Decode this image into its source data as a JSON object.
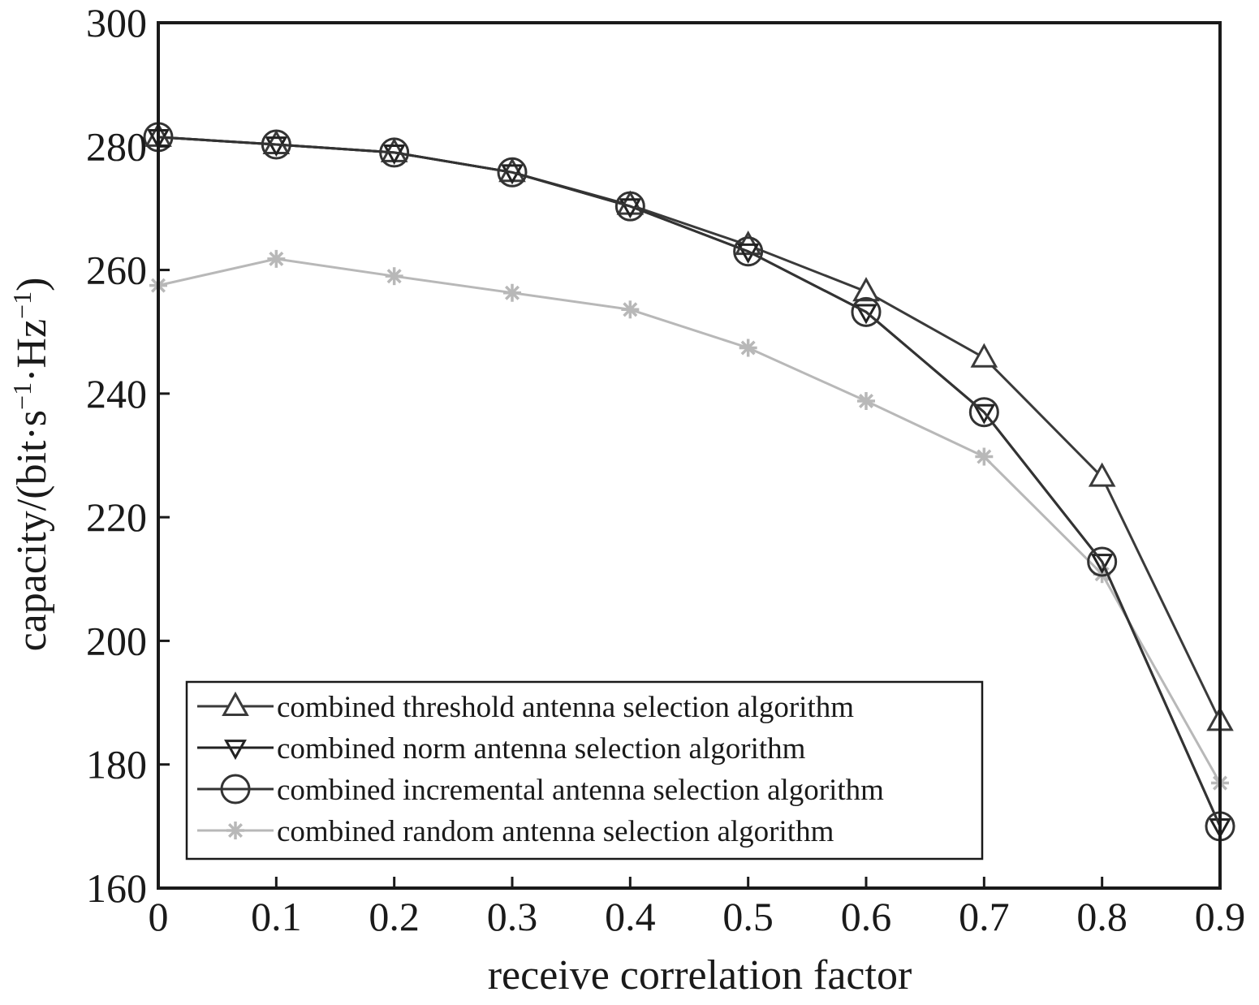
{
  "chart_data": {
    "type": "line",
    "xlabel": "receive correlation factor",
    "ylabel": {
      "prefix": "capacity/(bit·s",
      "sup1": "−1",
      "mid": "·Hz",
      "sup2": "−1",
      "suffix": ")"
    },
    "xlim": [
      0,
      0.9
    ],
    "ylim": [
      160,
      300
    ],
    "x_ticks": [
      "0",
      "0.1",
      "0.2",
      "0.3",
      "0.4",
      "0.5",
      "0.6",
      "0.7",
      "0.8",
      "0.9"
    ],
    "y_ticks": [
      "160",
      "180",
      "200",
      "220",
      "240",
      "260",
      "280",
      "300"
    ],
    "x": [
      0,
      0.1,
      0.2,
      0.3,
      0.4,
      0.5,
      0.6,
      0.7,
      0.8,
      0.9
    ],
    "grid": false,
    "legend_position": "bottom-left",
    "series": [
      {
        "name": "combined threshold antenna selection algorithm",
        "marker": "triangle-up",
        "color": "#3a3a3a",
        "values": [
          281.5,
          280.3,
          279.0,
          275.8,
          270.5,
          264.0,
          256.5,
          245.8,
          226.5,
          187.0
        ]
      },
      {
        "name": "combined norm antenna selection algorithm",
        "marker": "triangle-down",
        "color": "#222222",
        "values": [
          281.5,
          280.3,
          279.0,
          275.8,
          270.3,
          263.0,
          253.2,
          237.0,
          212.8,
          170.0
        ]
      },
      {
        "name": "combined incremental antenna selection algorithm",
        "marker": "circle",
        "color": "#333333",
        "values": [
          281.5,
          280.3,
          279.0,
          275.8,
          270.3,
          263.0,
          253.2,
          237.0,
          212.8,
          170.0
        ]
      },
      {
        "name": "combined random antenna selection algorithm",
        "marker": "star",
        "color": "#b8b8b8",
        "values": [
          257.5,
          261.8,
          259.0,
          256.3,
          253.6,
          247.4,
          238.8,
          229.8,
          210.8,
          177.0
        ]
      }
    ]
  }
}
